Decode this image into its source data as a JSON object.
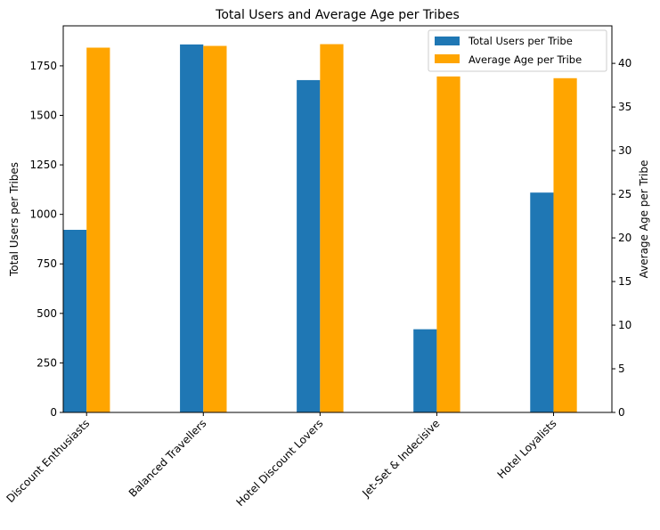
{
  "chart_data": {
    "type": "bar",
    "title": "Total Users and Average Age per Tribes",
    "xlabel": "",
    "categories": [
      "Discount Enthusiasts",
      "Balanced Travellers",
      "Hotel Discount Lovers",
      "Jet-Set & Indecisive",
      "Hotel Loyalists"
    ],
    "series": [
      {
        "name": "Total Users per Tribe",
        "axis": "left",
        "color": "#1f77b4",
        "values": [
          922,
          1858,
          1678,
          420,
          1110
        ]
      },
      {
        "name": "Average Age per Tribe",
        "axis": "right",
        "color": "#ffa500",
        "values": [
          41.8,
          42.0,
          42.2,
          38.5,
          38.3
        ]
      }
    ],
    "y_left": {
      "label": "Total Users per Tribes",
      "ylim": [
        0,
        1952
      ],
      "ticks": [
        0,
        250,
        500,
        750,
        1000,
        1250,
        1500,
        1750
      ]
    },
    "y_right": {
      "label": "Average Age per Tribe",
      "ylim": [
        0,
        44.3
      ],
      "ticks": [
        0,
        5,
        10,
        15,
        20,
        25,
        30,
        35,
        40
      ]
    },
    "legend": "top-right",
    "grid": false
  }
}
